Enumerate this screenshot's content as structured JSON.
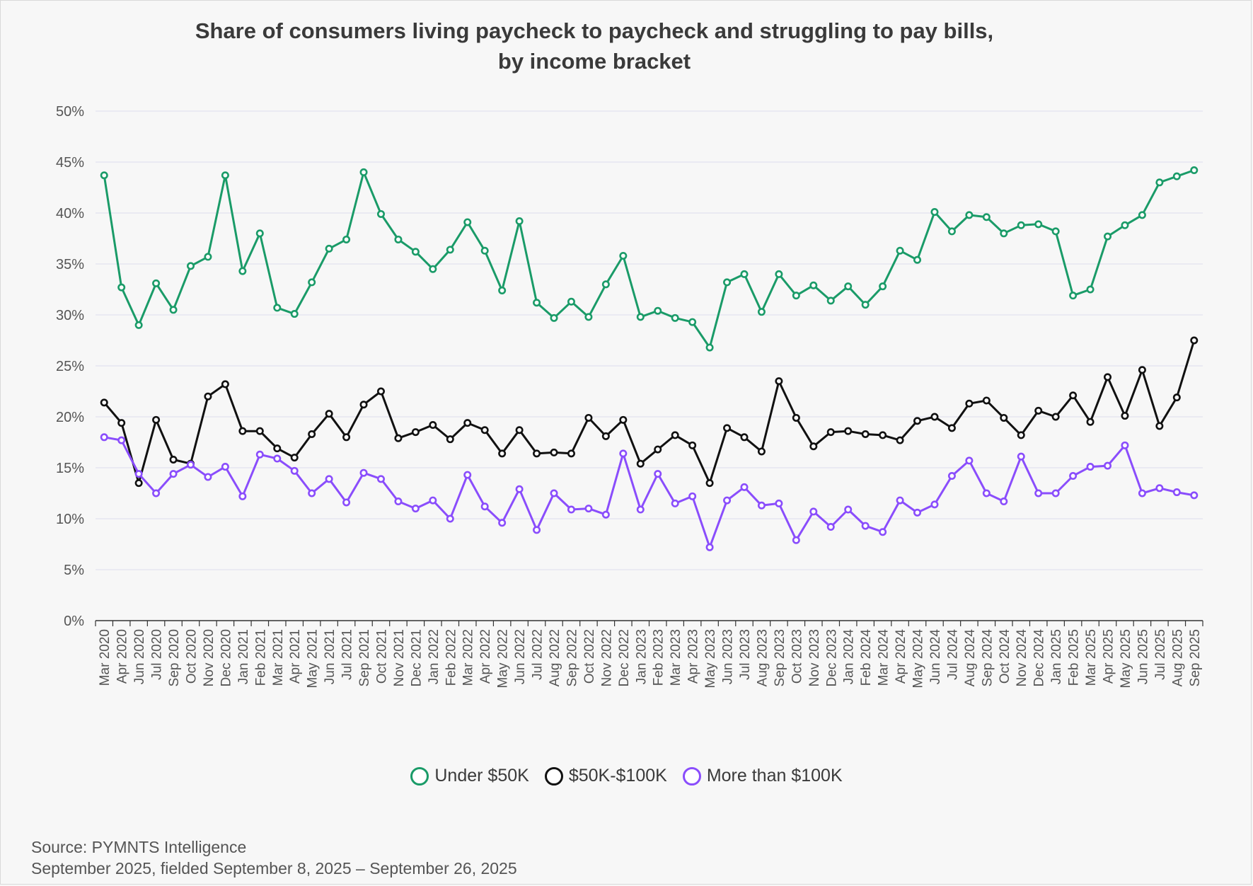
{
  "chart_data": {
    "type": "line",
    "title": "Share of consumers living paycheck to paycheck and struggling to pay bills, by income bracket",
    "ylim": [
      0,
      50
    ],
    "yticks": [
      "0%",
      "5%",
      "10%",
      "15%",
      "20%",
      "25%",
      "30%",
      "35%",
      "40%",
      "45%",
      "50%"
    ],
    "grid": true,
    "legend_position": "bottom",
    "categories": [
      "Mar 2020",
      "Apr 2020",
      "Jun 2020",
      "Jul 2020",
      "Sep 2020",
      "Oct 2020",
      "Nov 2020",
      "Dec 2020",
      "Jan 2021",
      "Feb 2021",
      "Mar 2021",
      "Apr 2021",
      "May 2021",
      "Jun 2021",
      "Jul 2021",
      "Sep 2021",
      "Oct 2021",
      "Nov 2021",
      "Dec 2021",
      "Jan 2022",
      "Feb 2022",
      "Mar 2022",
      "Apr 2022",
      "May 2022",
      "Jun 2022",
      "Jul 2022",
      "Aug 2022",
      "Sep 2022",
      "Oct 2022",
      "Nov 2022",
      "Dec 2022",
      "Jan 2023",
      "Feb 2023",
      "Mar 2023",
      "Apr 2023",
      "May 2023",
      "Jun 2023",
      "Jul 2023",
      "Aug 2023",
      "Sep 2023",
      "Oct 2023",
      "Nov 2023",
      "Dec 2023",
      "Jan 2024",
      "Feb 2024",
      "Mar 2024",
      "Apr 2024",
      "May 2024",
      "Jun 2024",
      "Jul 2024",
      "Aug 2024",
      "Sep 2024",
      "Oct 2024",
      "Nov 2024",
      "Dec 2024",
      "Jan 2025",
      "Feb 2025",
      "Mar 2025",
      "Apr 2025",
      "May 2025",
      "Jun 2025",
      "Jul 2025",
      "Aug 2025",
      "Sep 2025"
    ],
    "series": [
      {
        "name": "Under $50K",
        "color": "#1a9b68",
        "values": [
          43.7,
          32.7,
          29.0,
          33.1,
          30.5,
          34.8,
          35.7,
          43.7,
          34.3,
          38.0,
          30.7,
          30.1,
          33.2,
          36.5,
          37.4,
          44.0,
          39.9,
          37.4,
          36.2,
          34.5,
          36.4,
          39.1,
          36.3,
          32.4,
          39.2,
          31.2,
          29.7,
          31.3,
          29.8,
          33.0,
          35.8,
          29.8,
          30.4,
          29.7,
          29.3,
          26.8,
          33.2,
          34.0,
          30.3,
          34.0,
          31.9,
          32.9,
          31.4,
          32.8,
          31.0,
          32.8,
          36.3,
          35.4,
          40.1,
          38.2,
          39.8,
          39.6,
          38.0,
          38.8,
          38.9,
          38.2,
          31.9,
          32.5,
          37.7,
          38.8,
          39.8,
          43.0,
          43.6,
          44.2
        ]
      },
      {
        "name": "$50K-$100K",
        "color": "#111111",
        "values": [
          21.4,
          19.4,
          13.5,
          19.7,
          15.8,
          15.4,
          22.0,
          23.2,
          18.6,
          18.6,
          16.9,
          16.0,
          18.3,
          20.3,
          18.0,
          21.2,
          22.5,
          17.9,
          18.5,
          19.2,
          17.8,
          19.4,
          18.7,
          16.4,
          18.7,
          16.4,
          16.5,
          16.4,
          19.9,
          18.1,
          19.7,
          15.4,
          16.8,
          18.2,
          17.2,
          13.5,
          18.9,
          18.0,
          16.6,
          23.5,
          19.9,
          17.1,
          18.5,
          18.6,
          18.3,
          18.2,
          17.7,
          19.6,
          20.0,
          18.9,
          21.3,
          21.6,
          19.9,
          18.2,
          20.6,
          20.0,
          22.1,
          19.5,
          23.9,
          20.1,
          24.6,
          19.1,
          21.9,
          27.5
        ]
      },
      {
        "name": "More than $100K",
        "color": "#8a4dfc",
        "values": [
          18.0,
          17.7,
          14.4,
          12.5,
          14.4,
          15.3,
          14.1,
          15.1,
          12.2,
          16.3,
          15.9,
          14.7,
          12.5,
          13.9,
          11.6,
          14.5,
          13.9,
          11.7,
          11.0,
          11.8,
          10.0,
          14.3,
          11.2,
          9.6,
          12.9,
          8.9,
          12.5,
          10.9,
          11.0,
          10.4,
          16.4,
          10.9,
          14.4,
          11.5,
          12.2,
          7.2,
          11.8,
          13.1,
          11.3,
          11.5,
          7.9,
          10.7,
          9.2,
          10.9,
          9.3,
          8.7,
          11.8,
          10.6,
          11.4,
          14.2,
          15.7,
          12.5,
          11.7,
          16.1,
          12.5,
          12.5,
          14.2,
          15.1,
          15.2,
          17.2,
          12.5,
          13.0,
          12.6,
          12.3
        ]
      }
    ]
  },
  "source": {
    "line1": "Source: PYMNTS Intelligence",
    "line2": "September 2025, fielded September 8, 2025 – September 26, 2025"
  }
}
